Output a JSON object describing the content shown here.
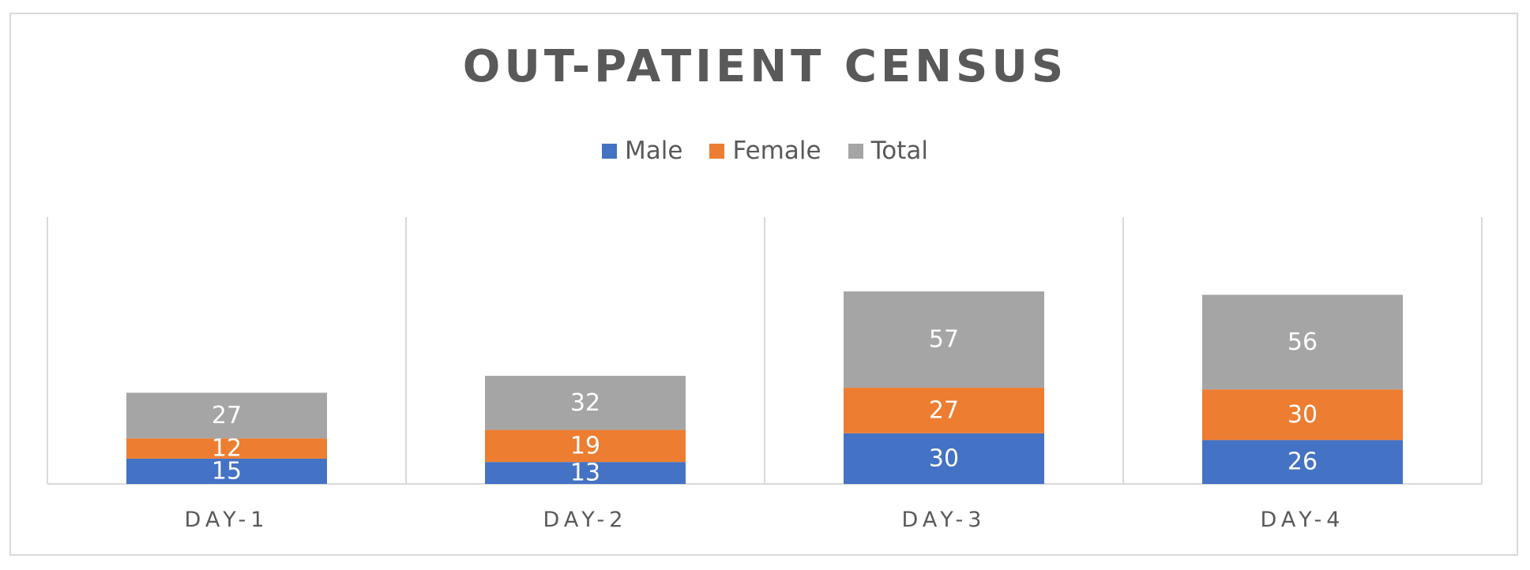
{
  "chart_data": {
    "type": "bar",
    "stacked": true,
    "title": "OUT-PATIENT CENSUS",
    "categories": [
      "DAY-1",
      "DAY-2",
      "DAY-3",
      "DAY-4"
    ],
    "series": [
      {
        "name": "Male",
        "values": [
          15,
          13,
          30,
          26
        ],
        "color": "#4472c4"
      },
      {
        "name": "Female",
        "values": [
          12,
          19,
          27,
          30
        ],
        "color": "#ed7d31"
      },
      {
        "name": "Total",
        "values": [
          27,
          32,
          57,
          56
        ],
        "color": "#a5a5a5"
      }
    ],
    "xlabel": "",
    "ylabel": "",
    "ylim": [
      0,
      158
    ],
    "legend_position": "top",
    "grid": false,
    "data_labels": true
  }
}
